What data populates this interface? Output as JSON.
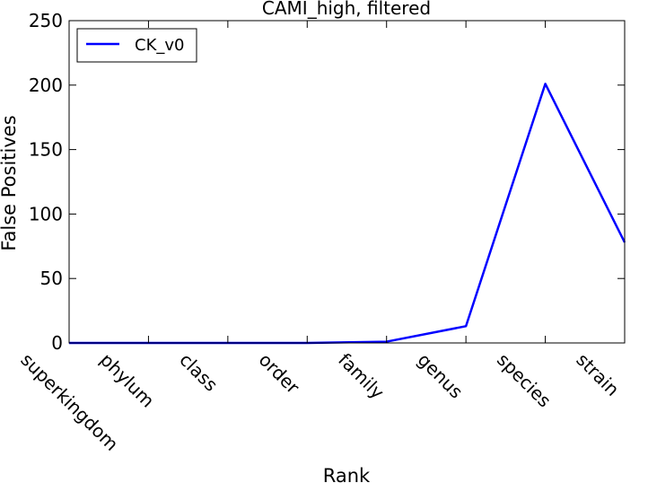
{
  "chart_data": {
    "type": "line",
    "title": "CAMI_high, filtered",
    "xlabel": "Rank",
    "ylabel": "False Positives",
    "categories": [
      "superkingdom",
      "phylum",
      "class",
      "order",
      "family",
      "genus",
      "species",
      "strain"
    ],
    "ylim": [
      0,
      250
    ],
    "yticks": [
      0,
      50,
      100,
      150,
      200,
      250
    ],
    "grid": false,
    "legend_position": "top-left",
    "series": [
      {
        "name": "CK_v0",
        "color": "#0000ff",
        "values": [
          0,
          0,
          0,
          0,
          1,
          13,
          201,
          78
        ]
      }
    ]
  }
}
